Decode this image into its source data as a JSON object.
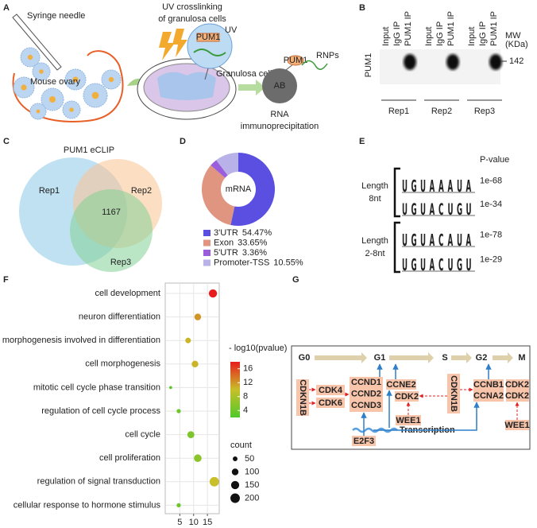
{
  "panel_labels": [
    "A",
    "B",
    "C",
    "D",
    "E",
    "F",
    "G"
  ],
  "panel_a": {
    "syringe_needle": "Syringe needle",
    "mouse_ovary": "Mouse ovary",
    "uv_title": [
      "UV crosslinking",
      "of granulosa cells"
    ],
    "protein": "PUM1",
    "uv": "UV",
    "granulosa_cell": "Granulosa cell",
    "antibody": "AB",
    "rnps": "RNPs",
    "complex_protein": "PUM1",
    "method": [
      "RNA",
      "immunoprecipitation"
    ]
  },
  "panel_b": {
    "protein": "PUM1",
    "mw_label": [
      "MW",
      "(KDa)"
    ],
    "marker": "142",
    "replicates": [
      {
        "name": "Rep1",
        "lanes": [
          "Input",
          "IgG IP",
          "PUM1 IP"
        ]
      },
      {
        "name": "Rep2",
        "lanes": [
          "Input",
          "IgG IP",
          "PUM1 IP"
        ]
      },
      {
        "name": "Rep3",
        "lanes": [
          "Input",
          "IgG IP",
          "PUM1 IP"
        ]
      }
    ]
  },
  "panel_c": {
    "title": "PUM1 eCLIP",
    "sets": [
      "Rep1",
      "Rep2",
      "Rep3"
    ],
    "overlap": 1167
  },
  "panel_e": {
    "p_value_header": "P-value",
    "base_colors": {
      "U": "#e8251f",
      "G": "#f2a51a",
      "A": "#2fa84a",
      "C": "#2f6fd0"
    },
    "groups": [
      {
        "label": [
          "Length",
          "8nt"
        ],
        "motifs": [
          {
            "sequence": [
              "U",
              "G",
              "U",
              "A",
              "A",
              "A",
              "U",
              "A"
            ],
            "p_value": "1e-68"
          },
          {
            "sequence": [
              "U",
              "G",
              "U",
              "A",
              "C",
              "U",
              "G",
              "U"
            ],
            "p_value": "1e-34"
          }
        ]
      },
      {
        "label": [
          "Length",
          "2-8nt"
        ],
        "motifs": [
          {
            "sequence": [
              "U",
              "G",
              "U",
              "A",
              "C",
              "A",
              "U",
              "A"
            ],
            "p_value": "1e-78"
          },
          {
            "sequence": [
              "U",
              "G",
              "U",
              "A",
              "C",
              "U",
              "G",
              "U"
            ],
            "p_value": "1e-29"
          }
        ]
      }
    ]
  },
  "panel_g": {
    "phases": [
      "G0",
      "G1",
      "S",
      "G2",
      "M"
    ],
    "inhibitor_left": "CDKN1B",
    "cdk_g1": [
      "CDK4",
      "CDK6"
    ],
    "cyclin_d": [
      "CCND1",
      "CCND2",
      "CCND3"
    ],
    "cyclin_e": "CCNE2",
    "cdk_s": "CDK2",
    "wee1_left": "WEE1",
    "inhibitor_right": "CDKN1B",
    "cyclin_m": [
      "CCNB1",
      "CCNA2"
    ],
    "cdk_m": [
      "CDK2",
      "CDK2"
    ],
    "wee1_right": "WEE1",
    "factor": "E2F3",
    "process": "Transcription"
  },
  "chart_data": [
    {
      "type": "pie",
      "center_label": "mRNA",
      "categories": [
        "3'UTR",
        "Exon",
        "5'UTR",
        "Promoter-TSS"
      ],
      "values": [
        54.47,
        33.65,
        3.36,
        10.55
      ],
      "value_labels": [
        "54.47%",
        "33.65%",
        "3.36%",
        "10.55%"
      ],
      "colors": [
        "#5a4fe0",
        "#e09580",
        "#9a5ddc",
        "#b9b2e8"
      ]
    },
    {
      "type": "scatter",
      "categories": [
        "cell development",
        "neuron differentiation",
        "cell morphogenesis involved in differentiation",
        "cell morphogenesis",
        "mitotic cell cycle phase transition",
        "regulation of cell cycle process",
        "cell cycle",
        "cell proliferation",
        "regulation of signal transduction",
        "cellular response to hormone stimulus"
      ],
      "values": [
        17,
        11.5,
        8,
        10.5,
        1.7,
        4.6,
        9,
        11.5,
        17.5,
        4.6
      ],
      "sizes": [
        150,
        100,
        70,
        100,
        20,
        40,
        110,
        130,
        200,
        40
      ],
      "color_values": [
        18,
        12,
        10.5,
        10.5,
        3,
        4,
        5,
        6,
        10,
        4
      ],
      "xlim": [
        0,
        19
      ],
      "xticks": [
        5,
        10,
        15
      ],
      "grid": true,
      "color_title": "- log10(pvalue)",
      "color_lim": [
        2,
        18
      ],
      "color_ticks": [
        4,
        8,
        12,
        16
      ],
      "colors": [
        "#4fc92b",
        "#c8bf2a",
        "#e81c1c"
      ],
      "size_title": "count",
      "size_ticks": [
        50,
        100,
        150,
        200
      ]
    }
  ]
}
